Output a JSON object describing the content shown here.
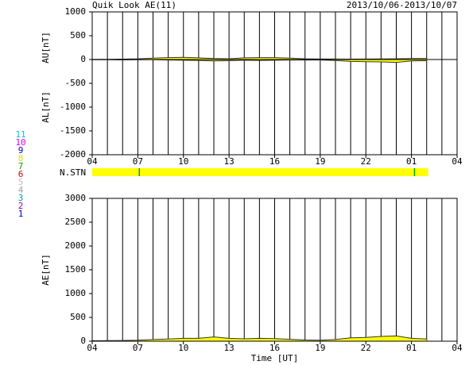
{
  "chart_data": [
    {
      "type": "area",
      "title": "Quik Look AE(11)",
      "subtitle": "2013/10/06-2013/10/07",
      "ylabels": [
        "AU[nT]",
        "AL[nT]"
      ],
      "x": [
        0,
        1,
        2,
        3,
        4,
        5,
        6,
        7,
        8,
        9,
        10,
        11,
        12,
        13,
        14,
        15,
        16,
        17,
        18,
        19,
        20,
        21,
        22
      ],
      "series": [
        {
          "name": "AU",
          "color": "#ffff00",
          "values": [
            2,
            5,
            8,
            15,
            30,
            40,
            45,
            35,
            20,
            15,
            35,
            40,
            40,
            30,
            15,
            10,
            10,
            8,
            10,
            12,
            15,
            20,
            20
          ]
        },
        {
          "name": "AL",
          "color": "#ffff00",
          "values": [
            -5,
            -5,
            -8,
            -5,
            -5,
            -10,
            -15,
            -20,
            -30,
            -25,
            -15,
            -20,
            -15,
            -10,
            -10,
            -10,
            -20,
            -40,
            -45,
            -50,
            -60,
            -30,
            -25
          ]
        }
      ],
      "xlim": [
        0,
        24
      ],
      "xticks": [
        {
          "value": 0,
          "label": "04"
        },
        {
          "value": 3,
          "label": "07"
        },
        {
          "value": 6,
          "label": "10"
        },
        {
          "value": 9,
          "label": "13"
        },
        {
          "value": 12,
          "label": "16"
        },
        {
          "value": 15,
          "label": "19"
        },
        {
          "value": 18,
          "label": "22"
        },
        {
          "value": 21,
          "label": "01"
        },
        {
          "value": 24,
          "label": "04"
        }
      ],
      "xgridlines": [
        1,
        2,
        3,
        4,
        5,
        6,
        7,
        8,
        9,
        10,
        11,
        12,
        13,
        14,
        15,
        16,
        17,
        18,
        19,
        20,
        21,
        22,
        23
      ],
      "ylim": [
        -2000,
        1000
      ],
      "yticks": [
        1000,
        500,
        0,
        -500,
        -1000,
        -1500,
        -2000
      ],
      "zero_line": true
    },
    {
      "type": "area",
      "ylabels": [
        "AE[nT]"
      ],
      "xlabel": "Time [UT]",
      "x": [
        0,
        1,
        2,
        3,
        4,
        5,
        6,
        7,
        8,
        9,
        10,
        11,
        12,
        13,
        14,
        15,
        16,
        17,
        18,
        19,
        20,
        21,
        22
      ],
      "series": [
        {
          "name": "AE",
          "color": "#ffff00",
          "values": [
            10,
            12,
            15,
            20,
            35,
            45,
            60,
            60,
            90,
            60,
            50,
            60,
            55,
            40,
            25,
            20,
            35,
            70,
            80,
            100,
            110,
            60,
            45
          ]
        }
      ],
      "xlim": [
        0,
        24
      ],
      "xticks": [
        {
          "value": 0,
          "label": "04"
        },
        {
          "value": 3,
          "label": "07"
        },
        {
          "value": 6,
          "label": "10"
        },
        {
          "value": 9,
          "label": "13"
        },
        {
          "value": 12,
          "label": "16"
        },
        {
          "value": 15,
          "label": "19"
        },
        {
          "value": 18,
          "label": "22"
        },
        {
          "value": 21,
          "label": "01"
        },
        {
          "value": 24,
          "label": "04"
        }
      ],
      "xgridlines": [
        1,
        2,
        3,
        4,
        5,
        6,
        7,
        8,
        9,
        10,
        11,
        12,
        13,
        14,
        15,
        16,
        17,
        18,
        19,
        20,
        21,
        22,
        23
      ],
      "ylim": [
        0,
        3000
      ],
      "yticks": [
        3000,
        2500,
        2000,
        1500,
        1000,
        500,
        0
      ],
      "zero_line": false
    }
  ],
  "nstn": {
    "label": "N.STN",
    "color": "#ffff00",
    "end": 22.1,
    "change_color": "#00a000",
    "changes": [
      3.1,
      21.2
    ]
  },
  "station_legend": [
    {
      "label": "11",
      "color": "#00c8c8"
    },
    {
      "label": "10",
      "color": "#e000e0"
    },
    {
      "label": "9",
      "color": "#0000c8"
    },
    {
      "label": "8",
      "color": "#e0e000"
    },
    {
      "label": "7",
      "color": "#00a000"
    },
    {
      "label": "6",
      "color": "#e00000"
    },
    {
      "label": "5",
      "color": "#c0c0c0"
    },
    {
      "label": "4",
      "color": "#a0a0a0"
    },
    {
      "label": "3",
      "color": "#00a0a0"
    },
    {
      "label": "2",
      "color": "#a000a0"
    },
    {
      "label": "1",
      "color": "#0000e0"
    }
  ]
}
